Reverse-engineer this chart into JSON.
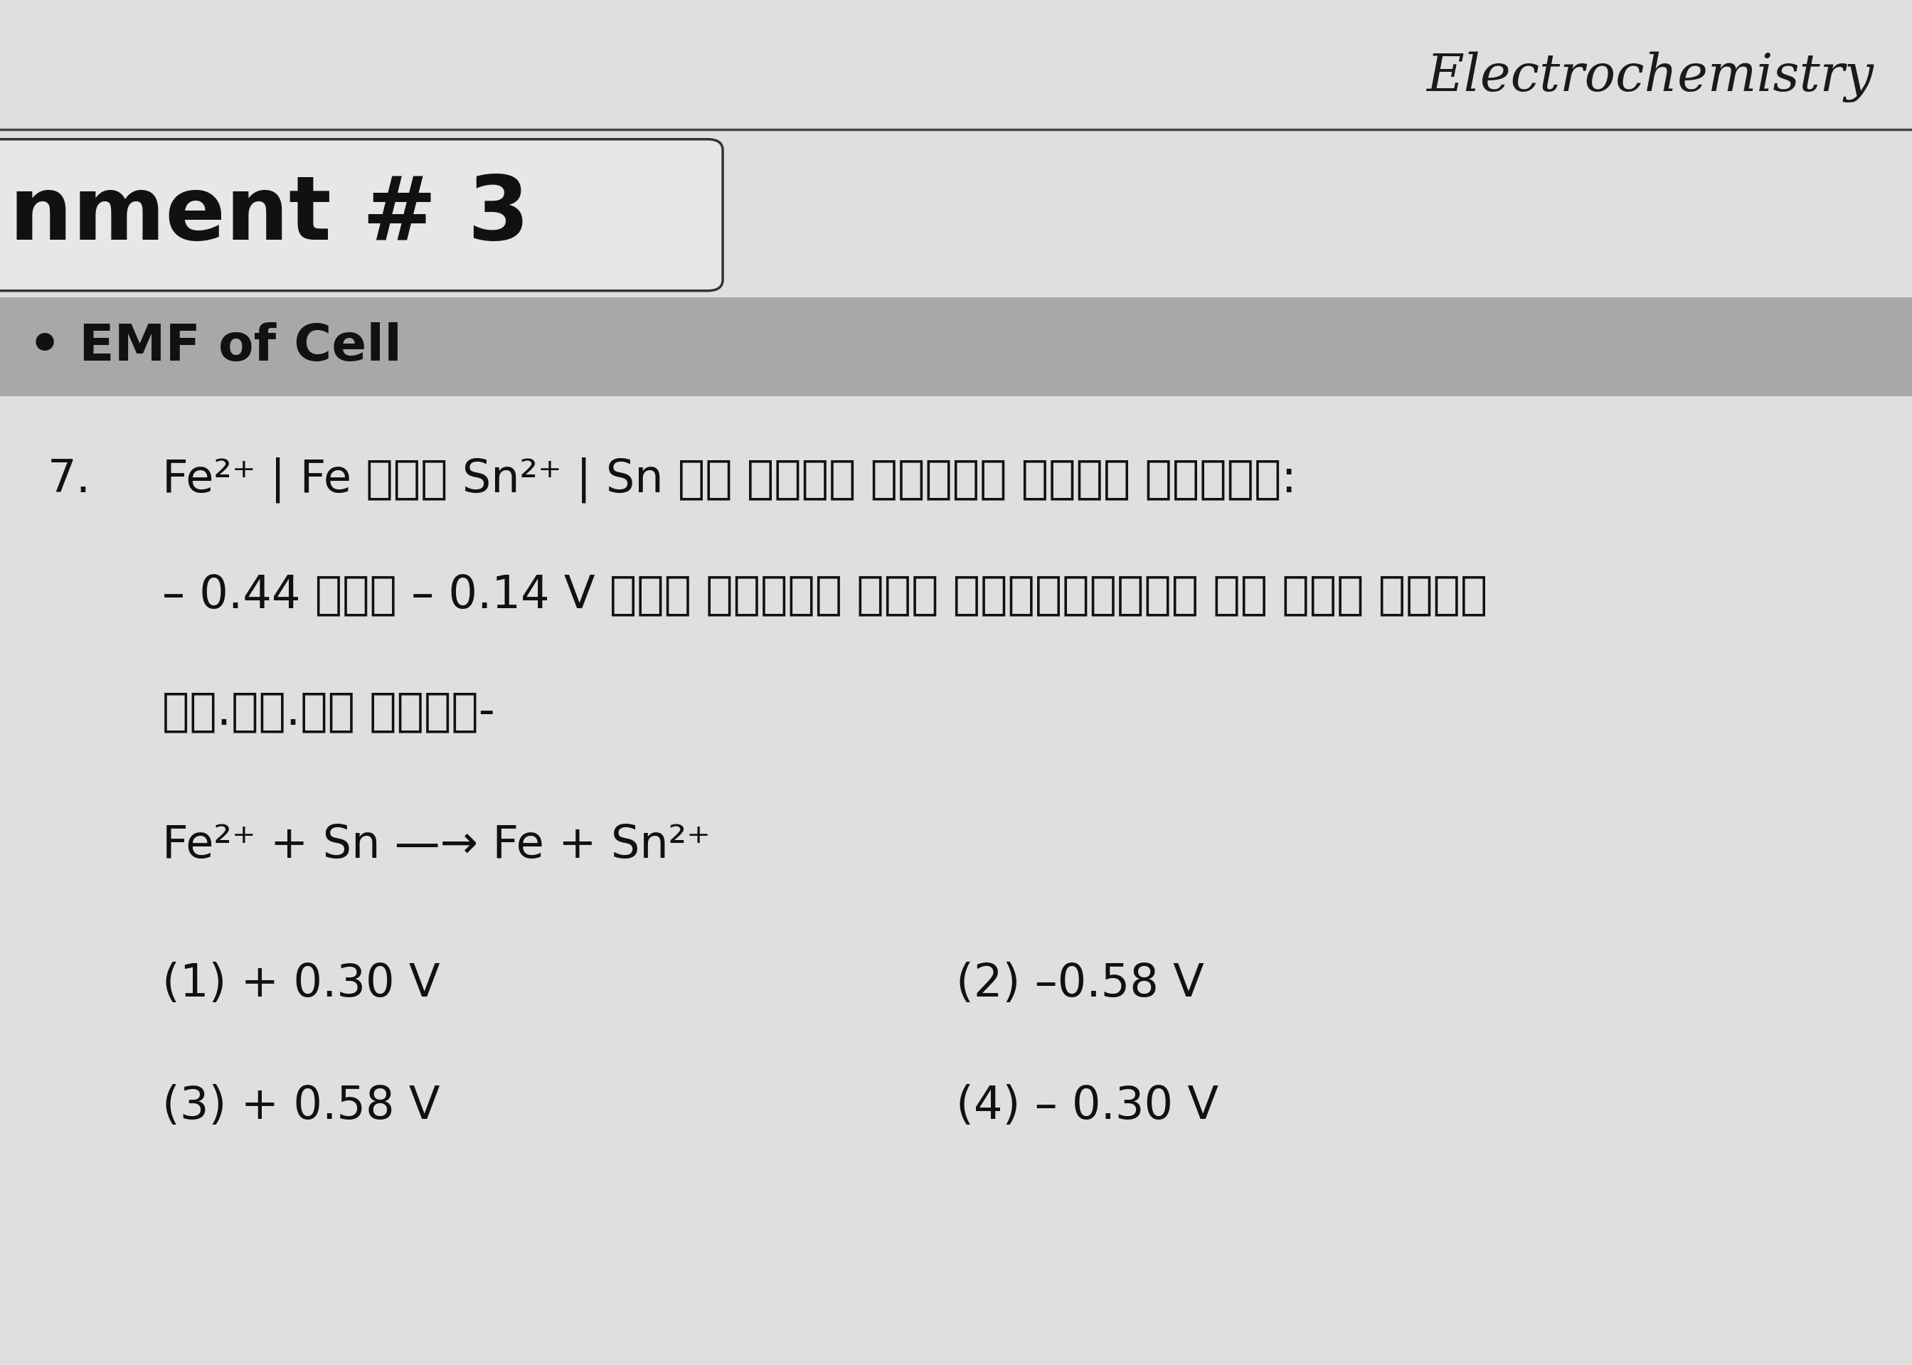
{
  "bg_color": "#d8d8d8",
  "page_bg": "#e0dede",
  "top_right_text": "Electrochemistry",
  "box_text": "nment # 3",
  "section_bar_text": "• EMF of Cell",
  "section_bar_color": "#a8a8a8",
  "question_number": "7.",
  "hindi_line1": "Fe²⁺ | Fe तथा Sn²⁺ | Sn के मानक अपचयन विभव क्रमश:",
  "hindi_line2": "– 0.44 तथा – 0.14 V है। निम्न सेल अभिक्रिया के लिए मानक",
  "hindi_line3": "वि.वा.बल होगा-",
  "reaction_line": "Fe²⁺ + Sn —→ Fe + Sn²⁺",
  "option1": "(1) + 0.30 V",
  "option2": "(2) –0.58 V",
  "option3": "(3) + 0.58 V",
  "option4": "(4) – 0.30 V",
  "font_size_header": 52,
  "font_size_box": 90,
  "font_size_section": 52,
  "font_size_question": 46,
  "font_size_options": 46
}
